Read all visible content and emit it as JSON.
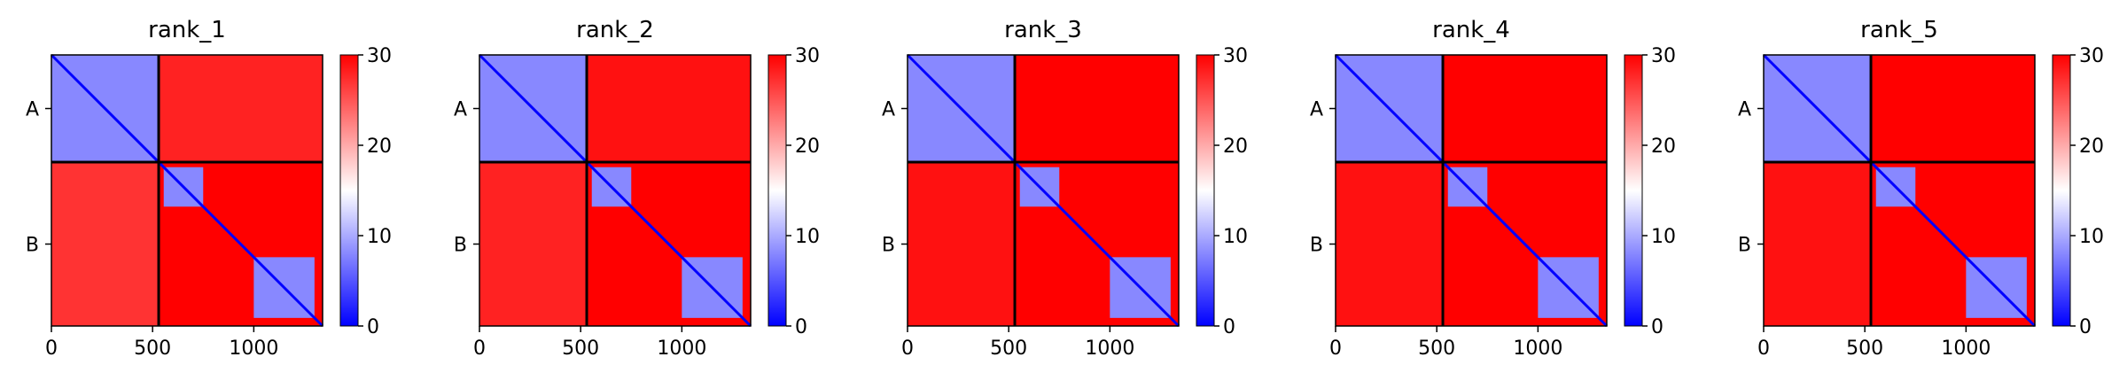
{
  "chart_data": [
    {
      "type": "heatmap",
      "title": "rank_1",
      "xlabel": "",
      "ylabel": "",
      "xlim": [
        0,
        1340
      ],
      "ylim": [
        1340,
        0
      ],
      "x_ticks": [
        0,
        500,
        1000
      ],
      "y_ticks": [
        "A",
        "B"
      ],
      "chain_boundaries": [
        530
      ],
      "chains": [
        {
          "name": "A",
          "range": [
            0,
            530
          ]
        },
        {
          "name": "B",
          "range": [
            530,
            1340
          ]
        }
      ],
      "colorbar": {
        "ticks": [
          0,
          10,
          20,
          30
        ],
        "range": [
          0,
          30
        ],
        "colors": [
          "#0000ff",
          "#ffffff",
          "#ff0000"
        ]
      },
      "blocks": [
        {
          "x0": 0,
          "x1": 530,
          "y0": 0,
          "y1": 530,
          "value": 8
        },
        {
          "x0": 0,
          "x1": 530,
          "y0": 530,
          "y1": 1340,
          "value": 27
        },
        {
          "x0": 530,
          "x1": 1340,
          "y0": 0,
          "y1": 530,
          "value": 28
        },
        {
          "x0": 530,
          "x1": 1340,
          "y0": 530,
          "y1": 1340,
          "value": 30
        },
        {
          "x0": 555,
          "x1": 750,
          "y0": 555,
          "y1": 750,
          "value": 8
        },
        {
          "x0": 1000,
          "x1": 1300,
          "y0": 1000,
          "y1": 1300,
          "value": 8
        }
      ]
    },
    {
      "type": "heatmap",
      "title": "rank_2",
      "xlabel": "",
      "ylabel": "",
      "xlim": [
        0,
        1340
      ],
      "ylim": [
        1340,
        0
      ],
      "x_ticks": [
        0,
        500,
        1000
      ],
      "y_ticks": [
        "A",
        "B"
      ],
      "chain_boundaries": [
        530
      ],
      "chains": [
        {
          "name": "A",
          "range": [
            0,
            530
          ]
        },
        {
          "name": "B",
          "range": [
            530,
            1340
          ]
        }
      ],
      "colorbar": {
        "ticks": [
          0,
          10,
          20,
          30
        ],
        "range": [
          0,
          30
        ],
        "colors": [
          "#0000ff",
          "#ffffff",
          "#ff0000"
        ]
      },
      "blocks": [
        {
          "x0": 0,
          "x1": 530,
          "y0": 0,
          "y1": 530,
          "value": 8
        },
        {
          "x0": 0,
          "x1": 530,
          "y0": 530,
          "y1": 1340,
          "value": 28
        },
        {
          "x0": 530,
          "x1": 1340,
          "y0": 0,
          "y1": 530,
          "value": 29
        },
        {
          "x0": 530,
          "x1": 1340,
          "y0": 530,
          "y1": 1340,
          "value": 30
        },
        {
          "x0": 555,
          "x1": 750,
          "y0": 555,
          "y1": 750,
          "value": 8
        },
        {
          "x0": 1000,
          "x1": 1300,
          "y0": 1000,
          "y1": 1300,
          "value": 8
        }
      ]
    },
    {
      "type": "heatmap",
      "title": "rank_3",
      "xlabel": "",
      "ylabel": "",
      "xlim": [
        0,
        1340
      ],
      "ylim": [
        1340,
        0
      ],
      "x_ticks": [
        0,
        500,
        1000
      ],
      "y_ticks": [
        "A",
        "B"
      ],
      "chain_boundaries": [
        530
      ],
      "chains": [
        {
          "name": "A",
          "range": [
            0,
            530
          ]
        },
        {
          "name": "B",
          "range": [
            530,
            1340
          ]
        }
      ],
      "colorbar": {
        "ticks": [
          0,
          10,
          20,
          30
        ],
        "range": [
          0,
          30
        ],
        "colors": [
          "#0000ff",
          "#ffffff",
          "#ff0000"
        ]
      },
      "blocks": [
        {
          "x0": 0,
          "x1": 530,
          "y0": 0,
          "y1": 530,
          "value": 8
        },
        {
          "x0": 0,
          "x1": 530,
          "y0": 530,
          "y1": 1340,
          "value": 29
        },
        {
          "x0": 530,
          "x1": 1340,
          "y0": 0,
          "y1": 530,
          "value": 30
        },
        {
          "x0": 530,
          "x1": 1340,
          "y0": 530,
          "y1": 1340,
          "value": 30
        },
        {
          "x0": 555,
          "x1": 750,
          "y0": 555,
          "y1": 750,
          "value": 8
        },
        {
          "x0": 1000,
          "x1": 1300,
          "y0": 1000,
          "y1": 1300,
          "value": 8
        }
      ]
    },
    {
      "type": "heatmap",
      "title": "rank_4",
      "xlabel": "",
      "ylabel": "",
      "xlim": [
        0,
        1340
      ],
      "ylim": [
        1340,
        0
      ],
      "x_ticks": [
        0,
        500,
        1000
      ],
      "y_ticks": [
        "A",
        "B"
      ],
      "chain_boundaries": [
        530
      ],
      "chains": [
        {
          "name": "A",
          "range": [
            0,
            530
          ]
        },
        {
          "name": "B",
          "range": [
            530,
            1340
          ]
        }
      ],
      "colorbar": {
        "ticks": [
          0,
          10,
          20,
          30
        ],
        "range": [
          0,
          30
        ],
        "colors": [
          "#0000ff",
          "#ffffff",
          "#ff0000"
        ]
      },
      "blocks": [
        {
          "x0": 0,
          "x1": 530,
          "y0": 0,
          "y1": 530,
          "value": 8
        },
        {
          "x0": 0,
          "x1": 530,
          "y0": 530,
          "y1": 1340,
          "value": 29
        },
        {
          "x0": 530,
          "x1": 1340,
          "y0": 0,
          "y1": 530,
          "value": 30
        },
        {
          "x0": 530,
          "x1": 1340,
          "y0": 530,
          "y1": 1340,
          "value": 30
        },
        {
          "x0": 555,
          "x1": 750,
          "y0": 555,
          "y1": 750,
          "value": 8
        },
        {
          "x0": 1000,
          "x1": 1300,
          "y0": 1000,
          "y1": 1300,
          "value": 8
        }
      ]
    },
    {
      "type": "heatmap",
      "title": "rank_5",
      "xlabel": "",
      "ylabel": "",
      "xlim": [
        0,
        1340
      ],
      "ylim": [
        1340,
        0
      ],
      "x_ticks": [
        0,
        500,
        1000
      ],
      "y_ticks": [
        "A",
        "B"
      ],
      "chain_boundaries": [
        530
      ],
      "chains": [
        {
          "name": "A",
          "range": [
            0,
            530
          ]
        },
        {
          "name": "B",
          "range": [
            530,
            1340
          ]
        }
      ],
      "colorbar": {
        "ticks": [
          0,
          10,
          20,
          30
        ],
        "range": [
          0,
          30
        ],
        "colors": [
          "#0000ff",
          "#ffffff",
          "#ff0000"
        ]
      },
      "blocks": [
        {
          "x0": 0,
          "x1": 530,
          "y0": 0,
          "y1": 530,
          "value": 8
        },
        {
          "x0": 0,
          "x1": 530,
          "y0": 530,
          "y1": 1340,
          "value": 29
        },
        {
          "x0": 530,
          "x1": 1340,
          "y0": 0,
          "y1": 530,
          "value": 30
        },
        {
          "x0": 530,
          "x1": 1340,
          "y0": 530,
          "y1": 1340,
          "value": 30
        },
        {
          "x0": 555,
          "x1": 750,
          "y0": 555,
          "y1": 750,
          "value": 8
        },
        {
          "x0": 1000,
          "x1": 1300,
          "y0": 1000,
          "y1": 1300,
          "value": 8
        }
      ]
    }
  ]
}
